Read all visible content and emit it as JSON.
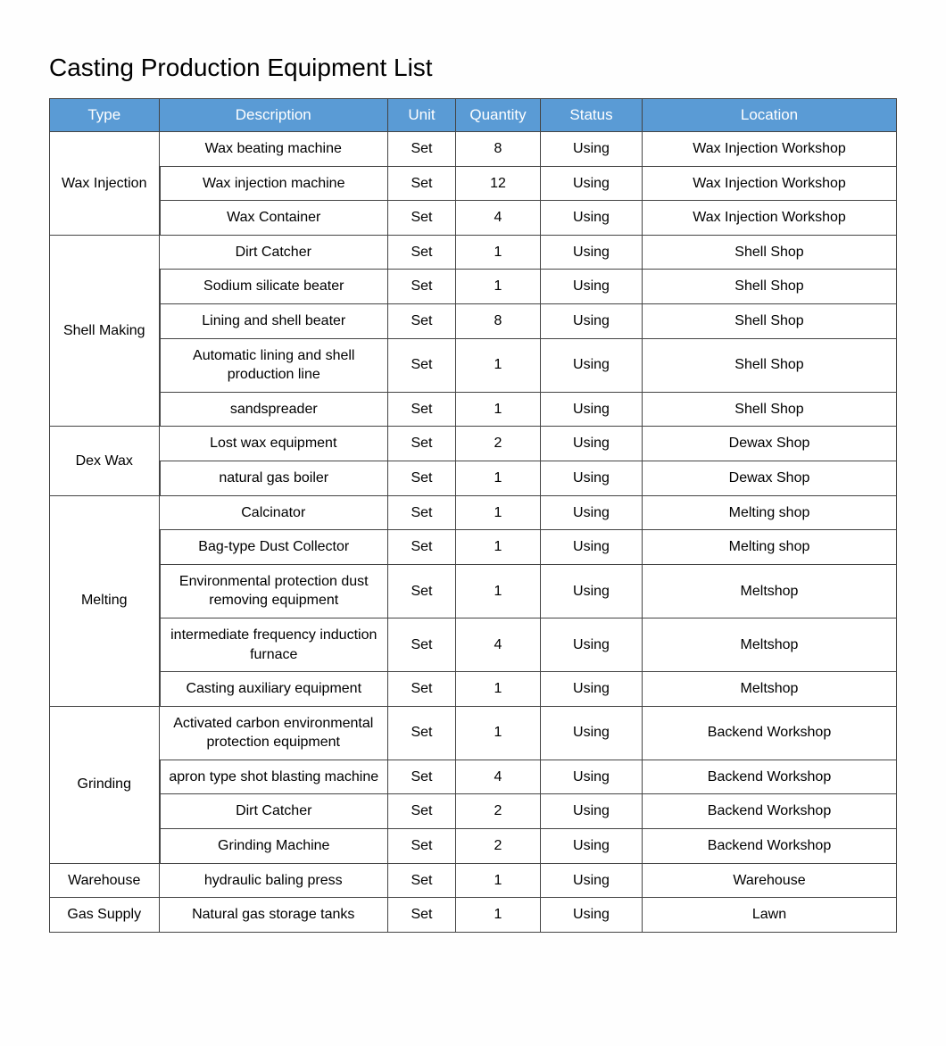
{
  "title": "Casting Production Equipment List",
  "header_bg": "#5a9bd5",
  "columns": [
    "Type",
    "Description",
    "Unit",
    "Quantity",
    "Status",
    "Location"
  ],
  "groups": [
    {
      "type": "Wax Injection",
      "rows": [
        {
          "description": "Wax beating machine",
          "unit": "Set",
          "quantity": "8",
          "status": "Using",
          "location": "Wax Injection Workshop"
        },
        {
          "description": "Wax injection machine",
          "unit": "Set",
          "quantity": "12",
          "status": "Using",
          "location": "Wax Injection Workshop"
        },
        {
          "description": "Wax Container",
          "unit": "Set",
          "quantity": "4",
          "status": "Using",
          "location": "Wax Injection Workshop"
        }
      ]
    },
    {
      "type": "Shell Making",
      "rows": [
        {
          "description": "Dirt Catcher",
          "unit": "Set",
          "quantity": "1",
          "status": "Using",
          "location": "Shell Shop"
        },
        {
          "description": "Sodium silicate beater",
          "unit": "Set",
          "quantity": "1",
          "status": "Using",
          "location": "Shell Shop"
        },
        {
          "description": "Lining and shell beater",
          "unit": "Set",
          "quantity": "8",
          "status": "Using",
          "location": "Shell Shop"
        },
        {
          "description": "Automatic lining and shell production line",
          "unit": "Set",
          "quantity": "1",
          "status": "Using",
          "location": "Shell Shop"
        },
        {
          "description": "sandspreader",
          "unit": "Set",
          "quantity": "1",
          "status": "Using",
          "location": "Shell Shop"
        }
      ]
    },
    {
      "type": "Dex Wax",
      "rows": [
        {
          "description": "Lost wax equipment",
          "unit": "Set",
          "quantity": "2",
          "status": "Using",
          "location": "Dewax Shop"
        },
        {
          "description": "natural gas boiler",
          "unit": "Set",
          "quantity": "1",
          "status": "Using",
          "location": "Dewax Shop"
        }
      ]
    },
    {
      "type": "Melting",
      "rows": [
        {
          "description": "Calcinator",
          "unit": "Set",
          "quantity": "1",
          "status": "Using",
          "location": "Melting shop"
        },
        {
          "description": "Bag-type Dust Collector",
          "unit": "Set",
          "quantity": "1",
          "status": "Using",
          "location": "Melting shop"
        },
        {
          "description": "Environmental protection dust removing equipment",
          "unit": "Set",
          "quantity": "1",
          "status": "Using",
          "location": "Meltshop"
        },
        {
          "description": "intermediate frequency induction furnace",
          "unit": "Set",
          "quantity": "4",
          "status": "Using",
          "location": "Meltshop"
        },
        {
          "description": "Casting auxiliary equipment",
          "unit": "Set",
          "quantity": "1",
          "status": "Using",
          "location": "Meltshop"
        }
      ]
    },
    {
      "type": "Grinding",
      "rows": [
        {
          "description": "Activated carbon environmental protection equipment",
          "unit": "Set",
          "quantity": "1",
          "status": "Using",
          "location": "Backend Workshop"
        },
        {
          "description": "apron type shot blasting machine",
          "unit": "Set",
          "quantity": "4",
          "status": "Using",
          "location": "Backend Workshop"
        },
        {
          "description": "Dirt Catcher",
          "unit": "Set",
          "quantity": "2",
          "status": "Using",
          "location": "Backend Workshop"
        },
        {
          "description": "Grinding Machine",
          "unit": "Set",
          "quantity": "2",
          "status": "Using",
          "location": "Backend Workshop"
        }
      ]
    },
    {
      "type": "Warehouse",
      "rows": [
        {
          "description": "hydraulic baling press",
          "unit": "Set",
          "quantity": "1",
          "status": "Using",
          "location": "Warehouse"
        }
      ]
    },
    {
      "type": "Gas Supply",
      "rows": [
        {
          "description": "Natural gas storage tanks",
          "unit": "Set",
          "quantity": "1",
          "status": "Using",
          "location": "Lawn"
        }
      ]
    }
  ]
}
